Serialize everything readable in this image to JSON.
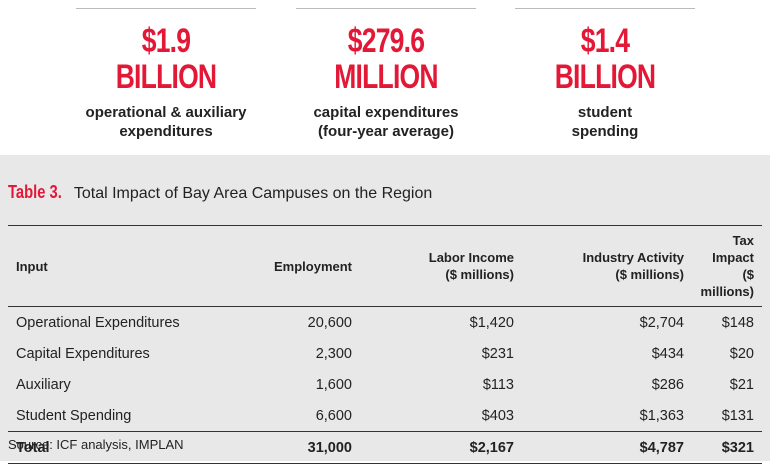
{
  "stats": [
    {
      "amount": "$1.9",
      "unit": "BILLION",
      "line1": "operational & auxiliary",
      "line2": "expenditures"
    },
    {
      "amount": "$279.6",
      "unit": "MILLION",
      "line1": "capital expenditures",
      "line2": "(four-year average)"
    },
    {
      "amount": "$1.4",
      "unit": "BILLION",
      "line1": "student",
      "line2": "spending"
    }
  ],
  "table": {
    "label": "Table 3.",
    "title": "Total Impact of Bay Area Campuses on the Region",
    "headers": [
      {
        "line1": "Input",
        "line2": ""
      },
      {
        "line1": "Employment",
        "line2": ""
      },
      {
        "line1": "Labor Income",
        "line2": "($ millions)"
      },
      {
        "line1": "Industry Activity",
        "line2": "($ millions)"
      },
      {
        "line1": "Tax Impact",
        "line2": "($ millions)"
      }
    ],
    "rows": [
      [
        "Operational Expenditures",
        "20,600",
        "$1,420",
        "$2,704",
        "$148"
      ],
      [
        "Capital Expenditures",
        "2,300",
        "$231",
        "$434",
        "$20"
      ],
      [
        "Auxiliary",
        "1,600",
        "$113",
        "$286",
        "$21"
      ],
      [
        "Student Spending",
        "6,600",
        "$403",
        "$1,363",
        "$131"
      ]
    ],
    "total": [
      "Total",
      "31,000",
      "$2,167",
      "$4,787",
      "$321"
    ]
  },
  "source": "Source: ICF analysis, IMPLAN",
  "colors": {
    "accent": "#e31837",
    "panel": "#e8e8e8"
  }
}
